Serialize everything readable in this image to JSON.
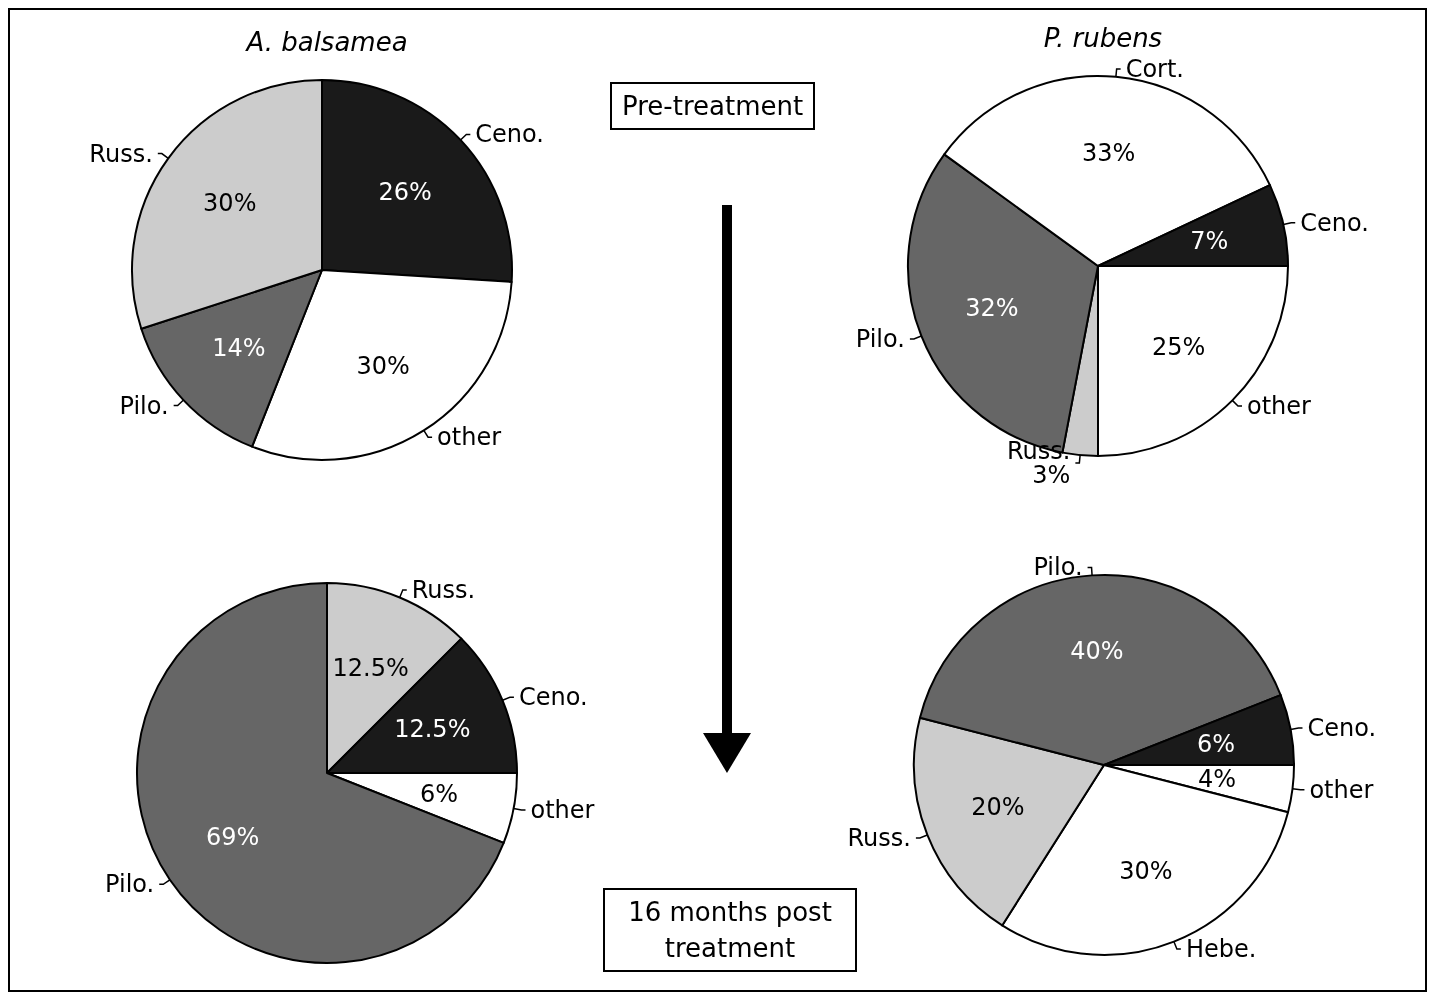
{
  "chart_data": [
    {
      "type": "pie",
      "title": "A. balsamea",
      "categories": [
        "Ceno.",
        "other",
        "Pilo.",
        "Russ."
      ],
      "values": [
        26,
        30,
        14,
        30
      ],
      "colors": [
        "#1a1a1a",
        "#ffffff",
        "#666666",
        "#cccccc"
      ],
      "value_labels": [
        "26%",
        "30%",
        "14%",
        "30%"
      ],
      "annotations": [
        "Pre-treatment"
      ]
    },
    {
      "type": "pie",
      "title": "P. rubens",
      "categories": [
        "other",
        "Russ.",
        "Pilo.",
        "Cort.",
        "Ceno."
      ],
      "values": [
        25,
        3,
        32,
        33,
        7
      ],
      "colors": [
        "#ffffff",
        "#cccccc",
        "#666666",
        "#ffffff",
        "#1a1a1a"
      ],
      "value_labels": [
        "25%",
        "3%",
        "32%",
        "33%",
        "7%"
      ]
    },
    {
      "type": "pie",
      "categories": [
        "Russ.",
        "Ceno.",
        "other",
        "Pilo."
      ],
      "values": [
        12.5,
        12.5,
        6,
        69
      ],
      "colors": [
        "#cccccc",
        "#1a1a1a",
        "#ffffff",
        "#666666"
      ],
      "value_labels": [
        "12.5%",
        "12.5%",
        "6%",
        "69%"
      ],
      "annotations": [
        "16 months post treatment"
      ]
    },
    {
      "type": "pie",
      "categories": [
        "other",
        "Hebe.",
        "Russ.",
        "Pilo.",
        "Ceno."
      ],
      "values": [
        4,
        30,
        20,
        40,
        6
      ],
      "colors": [
        "#ffffff",
        "#ffffff",
        "#cccccc",
        "#666666",
        "#1a1a1a"
      ],
      "value_labels": [
        "4%",
        "30%",
        "20%",
        "40%",
        "6%"
      ]
    }
  ]
}
